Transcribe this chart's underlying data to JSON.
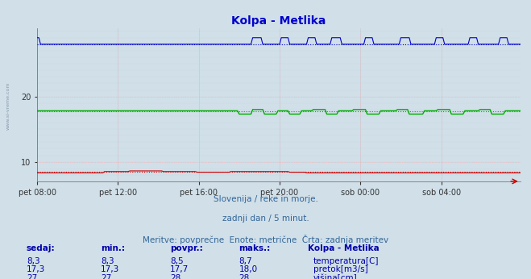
{
  "title": "Kolpa - Metlika",
  "title_color": "#0000cc",
  "bg_color": "#d0dfe8",
  "plot_bg_color": "#d0dfe8",
  "ylim": [
    7.0,
    30.5
  ],
  "yticks": [
    10,
    20
  ],
  "grid_color_major": "#ffaaaa",
  "grid_color_minor": "#c8d8e4",
  "watermark": "www.si-vreme.com",
  "subtitle1": "Slovenija / reke in morje.",
  "subtitle2": "zadnji dan / 5 minut.",
  "subtitle3": "Meritve: povprečne  Enote: metrične  Črta: zadnja meritev",
  "legend_title": "Kolpa - Metlika",
  "legend_items": [
    {
      "label": "temperatura[C]",
      "color": "#cc0000"
    },
    {
      "label": "pretok[m3/s]",
      "color": "#00aa00"
    },
    {
      "label": "višina[cm]",
      "color": "#0000cc"
    }
  ],
  "table_headers": [
    "sedaj:",
    "min.:",
    "povpr.:",
    "maks.:"
  ],
  "table_data": [
    [
      "8,3",
      "8,3",
      "8,5",
      "8,7"
    ],
    [
      "17,3",
      "17,3",
      "17,7",
      "18,0"
    ],
    [
      "27",
      "27",
      "28",
      "28"
    ]
  ],
  "temp_mean": 8.5,
  "pretok_mean": 17.7,
  "visina_mean": 28.0,
  "x_tick_labels": [
    "pet 08:00",
    "pet 12:00",
    "pet 16:00",
    "pet 20:00",
    "sob 00:00",
    "sob 04:00"
  ],
  "x_tick_positions": [
    0,
    48,
    96,
    144,
    192,
    240
  ],
  "total_points": 288
}
